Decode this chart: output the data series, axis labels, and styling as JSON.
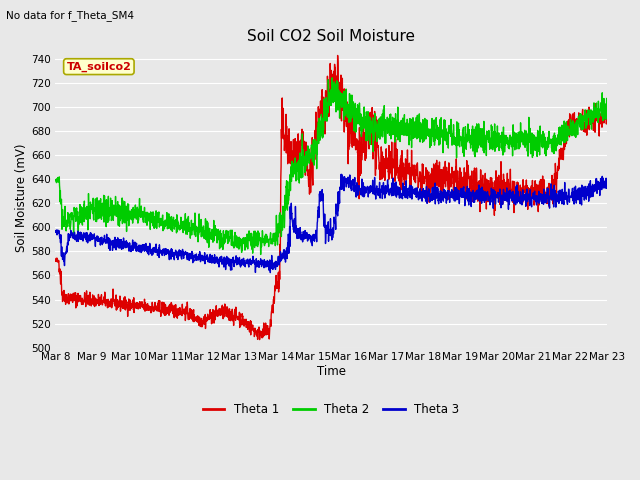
{
  "title": "Soil CO2 Soil Moisture",
  "subtitle": "No data for f_Theta_SM4",
  "xlabel": "Time",
  "ylabel": "Soil Moisture (mV)",
  "ylim": [
    500,
    750
  ],
  "yticks": [
    500,
    520,
    540,
    560,
    580,
    600,
    620,
    640,
    660,
    680,
    700,
    720,
    740
  ],
  "bg_color": "#e8e8e8",
  "plot_bg_color": "#e8e8e8",
  "grid_color": "#ffffff",
  "annotation_text": "TA_soilco2",
  "annotation_bg": "#ffffcc",
  "annotation_border": "#aaa800",
  "series": {
    "theta1": {
      "color": "#dd0000",
      "label": "Theta 1"
    },
    "theta2": {
      "color": "#00cc00",
      "label": "Theta 2"
    },
    "theta3": {
      "color": "#0000cc",
      "label": "Theta 3"
    }
  },
  "x_tick_labels": [
    "Mar 8",
    "Mar 9",
    "Mar 10",
    "Mar 11",
    "Mar 12",
    "Mar 13",
    "Mar 14",
    "Mar 15",
    "Mar 16",
    "Mar 17",
    "Mar 18",
    "Mar 19",
    "Mar 20",
    "Mar 21",
    "Mar 22",
    "Mar 23"
  ],
  "line_width": 1.0,
  "figsize": [
    6.4,
    4.8
  ],
  "dpi": 100
}
